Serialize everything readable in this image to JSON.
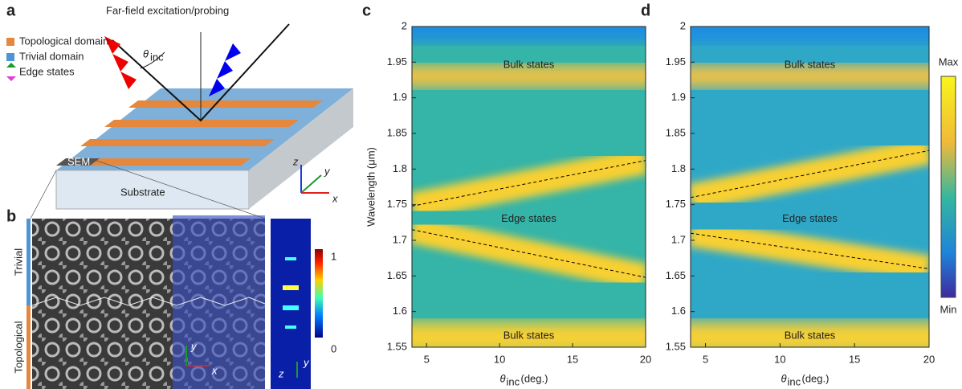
{
  "panels": {
    "a": {
      "label": "a",
      "excitation": "Far-field excitation/probing",
      "theta": "θ",
      "theta_sub": "inc",
      "legend": [
        "Topological domain",
        "Trivial domain",
        "Edge states"
      ],
      "sem": "SEM",
      "substrate": "Substrate",
      "axes": [
        "z",
        "y",
        "x"
      ]
    },
    "b": {
      "label": "b",
      "side_labels": [
        "Trivial",
        "Topological"
      ],
      "colorbar": [
        "1",
        "0"
      ],
      "axes": [
        "y",
        "x",
        "y",
        "z"
      ]
    }
  },
  "chart_data": [
    {
      "type": "heatmap",
      "panel_label": "c",
      "ylabel": "Wavelength (μm)",
      "xlabel_symbol": "θ",
      "xlabel_sub": "inc",
      "xlabel_unit": "(deg.)",
      "xlim": [
        4,
        20
      ],
      "xticks": [
        5,
        10,
        15,
        20
      ],
      "ylim": [
        1.55,
        2
      ],
      "yticks": [
        1.55,
        1.6,
        1.65,
        1.7,
        1.75,
        1.8,
        1.85,
        1.9,
        1.95,
        2
      ],
      "annotations": [
        "Bulk states",
        "Edge states",
        "Bulk states"
      ],
      "series": [
        {
          "color": "#000000",
          "x": [
            4,
            20
          ],
          "values": [
            1.748,
            1.812
          ]
        },
        {
          "color": "#000000",
          "x": [
            4,
            20
          ],
          "values": [
            1.715,
            1.648
          ]
        }
      ]
    },
    {
      "type": "heatmap",
      "panel_label": "d",
      "xlabel_symbol": "θ",
      "xlabel_sub": "inc",
      "xlabel_unit": "(deg.)",
      "xlim": [
        4,
        20
      ],
      "xticks": [
        5,
        10,
        15,
        20
      ],
      "ylim": [
        1.55,
        2
      ],
      "yticks": [
        1.55,
        1.6,
        1.65,
        1.7,
        1.75,
        1.8,
        1.85,
        1.9,
        1.95,
        2
      ],
      "annotations": [
        "Bulk states",
        "Edge states",
        "Bulk states"
      ],
      "colorbar": [
        "Max",
        "Min"
      ],
      "series": [
        {
          "color": "#000000",
          "x": [
            4,
            20
          ],
          "values": [
            1.76,
            1.826
          ]
        },
        {
          "color": "#000000",
          "x": [
            4,
            20
          ],
          "values": [
            1.71,
            1.66
          ]
        }
      ]
    }
  ]
}
